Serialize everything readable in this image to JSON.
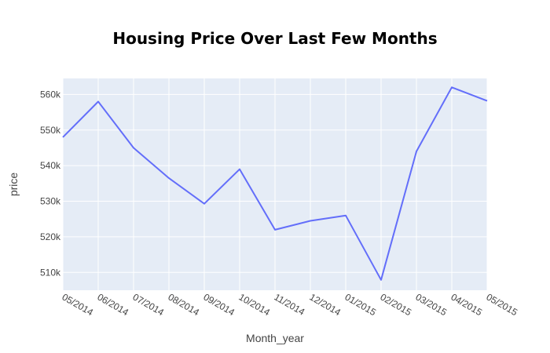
{
  "chart_data": {
    "type": "line",
    "title": "Housing Price Over Last Few Months",
    "xlabel": "Month_year",
    "ylabel": "price",
    "categories": [
      "05/2014",
      "06/2014",
      "07/2014",
      "08/2014",
      "09/2014",
      "10/2014",
      "11/2014",
      "12/2014",
      "01/2015",
      "02/2015",
      "03/2015",
      "04/2015",
      "05/2015"
    ],
    "values": [
      548000,
      558000,
      545000,
      536500,
      529300,
      539000,
      522000,
      524500,
      526000,
      507900,
      544000,
      562000,
      558200
    ],
    "ylim": [
      505000,
      564500
    ],
    "yticks": [
      510000,
      520000,
      530000,
      540000,
      550000,
      560000
    ],
    "ytick_labels": [
      "510k",
      "520k",
      "530k",
      "540k",
      "550k",
      "560k"
    ],
    "grid": true,
    "colors": {
      "line": "#636efa",
      "plot_bg": "#e5ecf6",
      "grid": "#ffffff"
    }
  }
}
